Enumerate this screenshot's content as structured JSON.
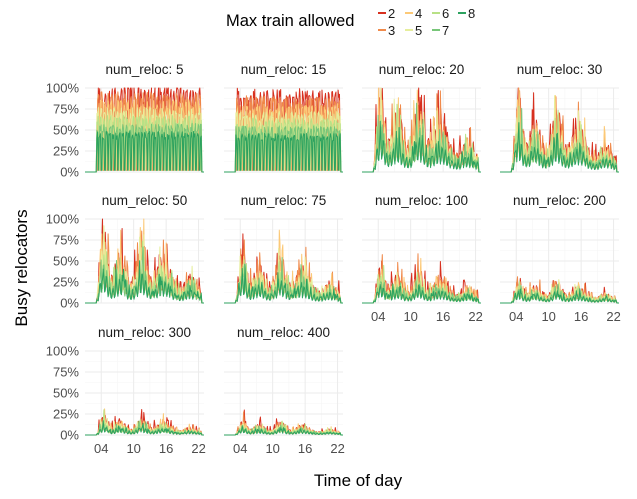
{
  "chart_data": {
    "type": "line",
    "title": "",
    "xlabel": "Time of day",
    "ylabel": "Busy relocators",
    "legend": {
      "title": "Max train allowed",
      "position": "top",
      "entries": [
        {
          "label": "2",
          "color": "#d7301f"
        },
        {
          "label": "3",
          "color": "#f08a4b"
        },
        {
          "label": "4",
          "color": "#fcc977"
        },
        {
          "label": "5",
          "color": "#e6ee9c"
        },
        {
          "label": "6",
          "color": "#b8e186"
        },
        {
          "label": "7",
          "color": "#78c679"
        },
        {
          "label": "8",
          "color": "#2ca25f"
        }
      ]
    },
    "facet_variable": "num_reloc",
    "facets": [
      {
        "label": "num_reloc: 5",
        "num_reloc": 5,
        "level": 1.0
      },
      {
        "label": "num_reloc: 15",
        "num_reloc": 15,
        "level": 0.95
      },
      {
        "label": "num_reloc: 20",
        "num_reloc": 20,
        "level": 0.85
      },
      {
        "label": "num_reloc: 30",
        "num_reloc": 30,
        "level": 0.75
      },
      {
        "label": "num_reloc: 50",
        "num_reloc": 50,
        "level": 0.72
      },
      {
        "label": "num_reloc: 75",
        "num_reloc": 75,
        "level": 0.55
      },
      {
        "label": "num_reloc: 100",
        "num_reloc": 100,
        "level": 0.4
      },
      {
        "label": "num_reloc: 200",
        "num_reloc": 200,
        "level": 0.25
      },
      {
        "label": "num_reloc: 300",
        "num_reloc": 300,
        "level": 0.2
      },
      {
        "label": "num_reloc: 400",
        "num_reloc": 400,
        "level": 0.15
      }
    ],
    "x_ticks": [
      "04",
      "10",
      "16",
      "22"
    ],
    "x_tick_values": [
      4,
      10,
      16,
      22
    ],
    "xlim": [
      1,
      23
    ],
    "y_ticks": [
      "0%",
      "25%",
      "50%",
      "75%",
      "100%"
    ],
    "y_tick_values": [
      0,
      0.25,
      0.5,
      0.75,
      1.0
    ],
    "ylim": [
      0,
      1.0
    ],
    "grid": true
  }
}
